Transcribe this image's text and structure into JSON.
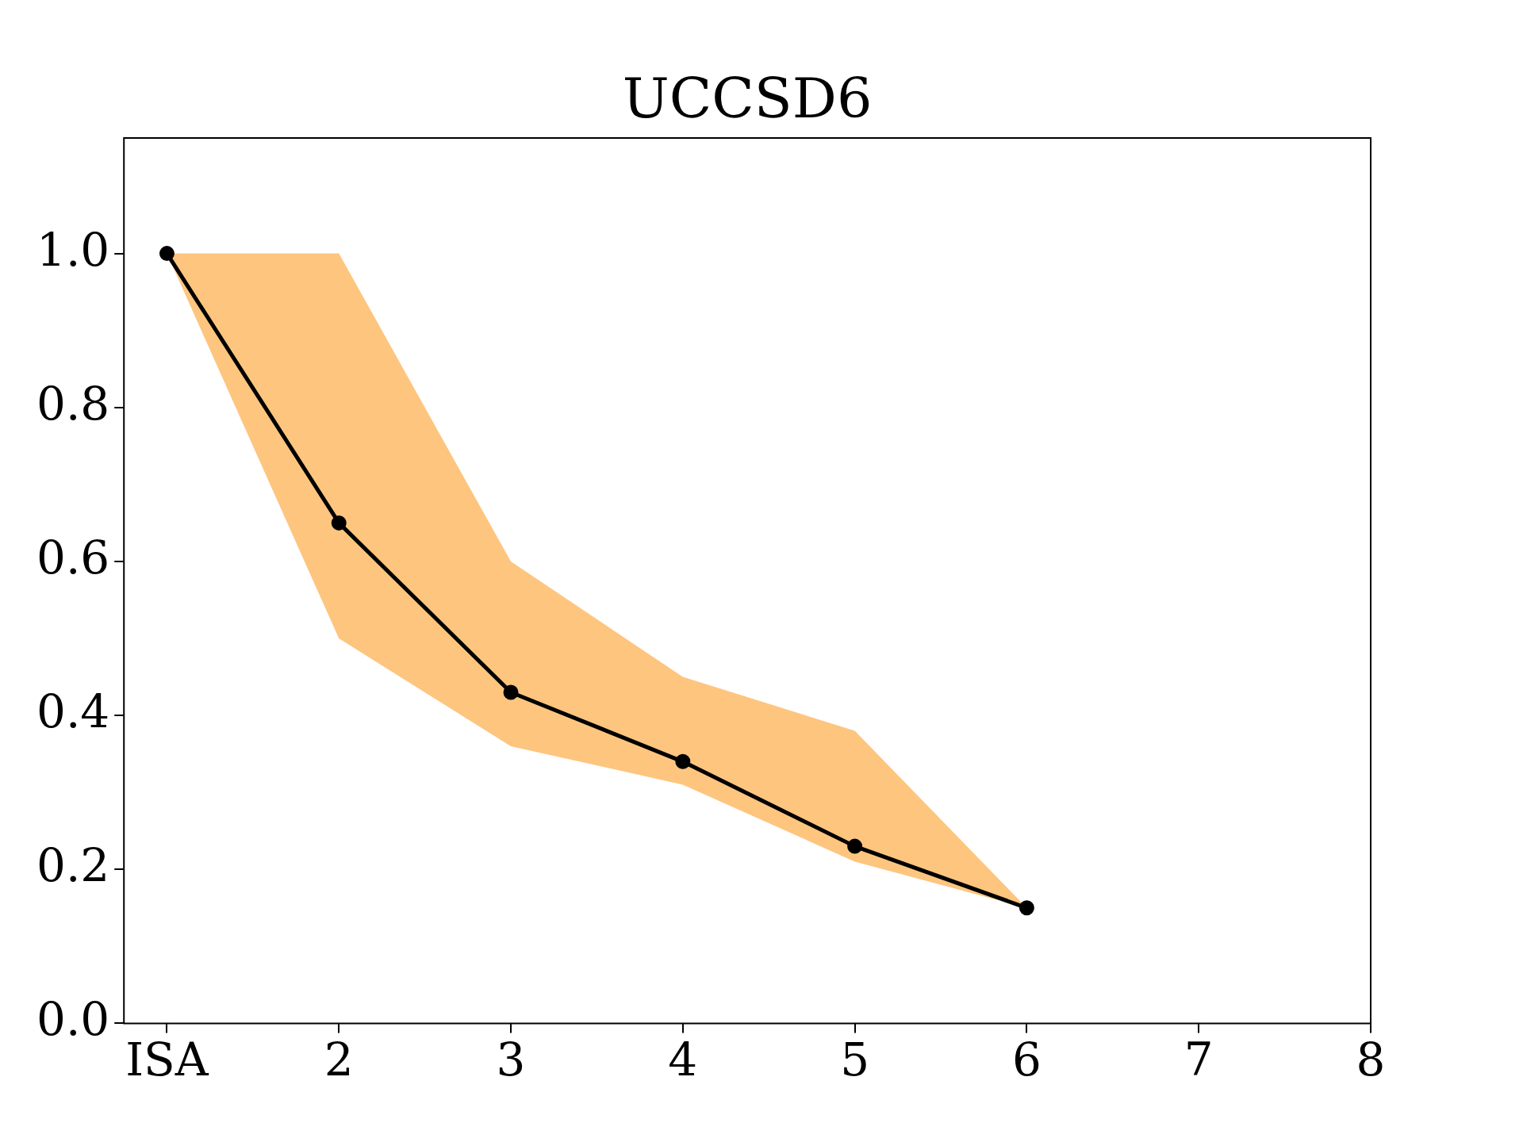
{
  "chart_data": {
    "type": "line",
    "title": "UCCSD6",
    "x": [
      1,
      2,
      3,
      4,
      5,
      6
    ],
    "series": [
      {
        "color": "#000000",
        "values": [
          1.0,
          0.65,
          0.43,
          0.34,
          0.23,
          0.15
        ],
        "lower": [
          1.0,
          0.5,
          0.36,
          0.31,
          0.21,
          0.15
        ],
        "upper": [
          1.0,
          1.0,
          0.6,
          0.45,
          0.38,
          0.15
        ]
      }
    ],
    "xlim": [
      0.75,
      8
    ],
    "xticks": [
      {
        "value": 1,
        "label": "ISA"
      },
      2,
      3,
      4,
      5,
      6,
      7,
      8
    ],
    "ylim": [
      0,
      1.15
    ],
    "yticks": [
      {
        "value": 0,
        "label": "0.0"
      },
      0.2,
      0.4,
      0.6,
      0.8,
      {
        "value": 1,
        "label": "1.0"
      }
    ],
    "grid": false,
    "legend": false,
    "marker": "circle",
    "line_style": "solid"
  }
}
